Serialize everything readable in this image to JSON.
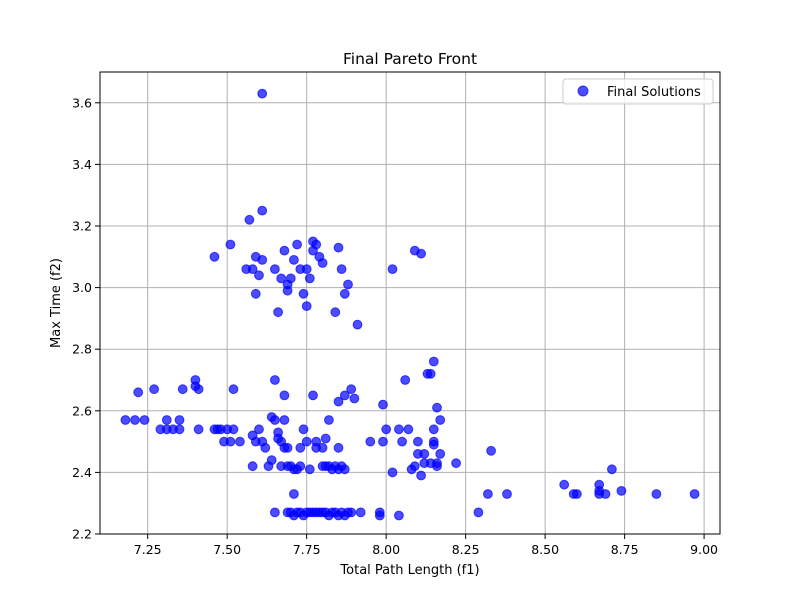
{
  "chart_data": {
    "type": "scatter",
    "title": "Final Pareto Front",
    "xlabel": "Total Path Length (f1)",
    "ylabel": "Max Time (f2)",
    "xlim": [
      7.1,
      9.05
    ],
    "ylim": [
      2.2,
      3.7
    ],
    "xticks": [
      7.25,
      7.5,
      7.75,
      8.0,
      8.25,
      8.5,
      8.75,
      9.0
    ],
    "xtick_labels": [
      "7.25",
      "7.50",
      "7.75",
      "8.00",
      "8.25",
      "8.50",
      "8.75",
      "9.00"
    ],
    "yticks": [
      2.2,
      2.4,
      2.6,
      2.8,
      3.0,
      3.2,
      3.4,
      3.6
    ],
    "ytick_labels": [
      "2.2",
      "2.4",
      "2.6",
      "2.8",
      "3.0",
      "3.2",
      "3.4",
      "3.6"
    ],
    "grid": true,
    "legend_position": "top-right",
    "series": [
      {
        "name": "Final Solutions",
        "color": "#0000ff",
        "alpha": 0.7,
        "points": [
          [
            7.61,
            3.63
          ],
          [
            7.61,
            3.25
          ],
          [
            7.57,
            3.22
          ],
          [
            7.51,
            3.14
          ],
          [
            7.46,
            3.1
          ],
          [
            7.56,
            3.06
          ],
          [
            7.58,
            3.06
          ],
          [
            7.59,
            3.1
          ],
          [
            7.61,
            3.09
          ],
          [
            7.6,
            3.04
          ],
          [
            7.59,
            2.98
          ],
          [
            7.65,
            3.06
          ],
          [
            7.67,
            3.03
          ],
          [
            7.69,
            3.01
          ],
          [
            7.69,
            2.99
          ],
          [
            7.68,
            3.12
          ],
          [
            7.71,
            3.09
          ],
          [
            7.7,
            3.03
          ],
          [
            7.72,
            3.14
          ],
          [
            7.73,
            3.06
          ],
          [
            7.74,
            2.98
          ],
          [
            7.75,
            2.94
          ],
          [
            7.66,
            2.92
          ],
          [
            7.75,
            3.06
          ],
          [
            7.77,
            3.15
          ],
          [
            7.78,
            3.14
          ],
          [
            7.77,
            3.12
          ],
          [
            7.76,
            3.03
          ],
          [
            7.79,
            3.1
          ],
          [
            7.8,
            3.08
          ],
          [
            7.85,
            3.13
          ],
          [
            7.86,
            3.06
          ],
          [
            7.84,
            2.92
          ],
          [
            7.87,
            2.98
          ],
          [
            7.88,
            3.01
          ],
          [
            7.91,
            2.88
          ],
          [
            8.02,
            3.06
          ],
          [
            8.09,
            3.12
          ],
          [
            8.11,
            3.11
          ],
          [
            7.18,
            2.57
          ],
          [
            7.21,
            2.57
          ],
          [
            7.22,
            2.66
          ],
          [
            7.24,
            2.57
          ],
          [
            7.27,
            2.67
          ],
          [
            7.29,
            2.54
          ],
          [
            7.31,
            2.57
          ],
          [
            7.31,
            2.54
          ],
          [
            7.33,
            2.54
          ],
          [
            7.35,
            2.54
          ],
          [
            7.35,
            2.57
          ],
          [
            7.36,
            2.67
          ],
          [
            7.4,
            2.7
          ],
          [
            7.4,
            2.68
          ],
          [
            7.41,
            2.67
          ],
          [
            7.41,
            2.54
          ],
          [
            7.46,
            2.54
          ],
          [
            7.47,
            2.54
          ],
          [
            7.48,
            2.54
          ],
          [
            7.49,
            2.5
          ],
          [
            7.5,
            2.54
          ],
          [
            7.51,
            2.5
          ],
          [
            7.52,
            2.54
          ],
          [
            7.52,
            2.67
          ],
          [
            7.54,
            2.5
          ],
          [
            7.58,
            2.52
          ],
          [
            7.58,
            2.42
          ],
          [
            7.59,
            2.5
          ],
          [
            7.6,
            2.54
          ],
          [
            7.61,
            2.5
          ],
          [
            7.62,
            2.48
          ],
          [
            7.63,
            2.42
          ],
          [
            7.64,
            2.58
          ],
          [
            7.65,
            2.57
          ],
          [
            7.64,
            2.44
          ],
          [
            7.65,
            2.7
          ],
          [
            7.66,
            2.53
          ],
          [
            7.66,
            2.51
          ],
          [
            7.67,
            2.5
          ],
          [
            7.67,
            2.42
          ],
          [
            7.68,
            2.48
          ],
          [
            7.68,
            2.57
          ],
          [
            7.68,
            2.65
          ],
          [
            7.69,
            2.48
          ],
          [
            7.69,
            2.42
          ],
          [
            7.7,
            2.42
          ],
          [
            7.71,
            2.41
          ],
          [
            7.72,
            2.41
          ],
          [
            7.71,
            2.33
          ],
          [
            7.73,
            2.42
          ],
          [
            7.74,
            2.54
          ],
          [
            7.73,
            2.48
          ],
          [
            7.75,
            2.5
          ],
          [
            7.76,
            2.41
          ],
          [
            7.77,
            2.65
          ],
          [
            7.78,
            2.48
          ],
          [
            7.78,
            2.5
          ],
          [
            7.8,
            2.42
          ],
          [
            7.8,
            2.48
          ],
          [
            7.81,
            2.42
          ],
          [
            7.81,
            2.51
          ],
          [
            7.82,
            2.57
          ],
          [
            7.82,
            2.42
          ],
          [
            7.83,
            2.41
          ],
          [
            7.84,
            2.42
          ],
          [
            7.85,
            2.41
          ],
          [
            7.85,
            2.48
          ],
          [
            7.85,
            2.63
          ],
          [
            7.86,
            2.42
          ],
          [
            7.87,
            2.41
          ],
          [
            7.87,
            2.65
          ],
          [
            7.89,
            2.67
          ],
          [
            7.9,
            2.64
          ],
          [
            7.95,
            2.5
          ],
          [
            7.99,
            2.62
          ],
          [
            7.99,
            2.5
          ],
          [
            8.0,
            2.54
          ],
          [
            8.02,
            2.4
          ],
          [
            8.04,
            2.54
          ],
          [
            8.05,
            2.5
          ],
          [
            8.06,
            2.7
          ],
          [
            8.07,
            2.54
          ],
          [
            8.08,
            2.41
          ],
          [
            8.09,
            2.42
          ],
          [
            8.1,
            2.46
          ],
          [
            8.1,
            2.5
          ],
          [
            8.11,
            2.39
          ],
          [
            8.12,
            2.46
          ],
          [
            8.12,
            2.43
          ],
          [
            8.13,
            2.72
          ],
          [
            8.14,
            2.72
          ],
          [
            8.14,
            2.43
          ],
          [
            8.15,
            2.54
          ],
          [
            8.15,
            2.5
          ],
          [
            8.15,
            2.49
          ],
          [
            8.15,
            2.76
          ],
          [
            8.16,
            2.61
          ],
          [
            8.16,
            2.43
          ],
          [
            8.16,
            2.42
          ],
          [
            8.17,
            2.57
          ],
          [
            8.17,
            2.46
          ],
          [
            8.22,
            2.43
          ],
          [
            8.29,
            2.27
          ],
          [
            8.32,
            2.33
          ],
          [
            8.33,
            2.47
          ],
          [
            8.38,
            2.33
          ],
          [
            8.56,
            2.36
          ],
          [
            8.59,
            2.33
          ],
          [
            8.6,
            2.33
          ],
          [
            8.67,
            2.36
          ],
          [
            8.67,
            2.34
          ],
          [
            8.67,
            2.33
          ],
          [
            8.69,
            2.33
          ],
          [
            8.71,
            2.41
          ],
          [
            8.74,
            2.34
          ],
          [
            8.85,
            2.33
          ],
          [
            8.97,
            2.33
          ],
          [
            7.65,
            2.27
          ],
          [
            7.69,
            2.27
          ],
          [
            7.7,
            2.27
          ],
          [
            7.71,
            2.26
          ],
          [
            7.72,
            2.27
          ],
          [
            7.73,
            2.27
          ],
          [
            7.74,
            2.26
          ],
          [
            7.75,
            2.27
          ],
          [
            7.76,
            2.27
          ],
          [
            7.77,
            2.27
          ],
          [
            7.78,
            2.27
          ],
          [
            7.79,
            2.27
          ],
          [
            7.8,
            2.27
          ],
          [
            7.81,
            2.27
          ],
          [
            7.82,
            2.26
          ],
          [
            7.83,
            2.27
          ],
          [
            7.84,
            2.27
          ],
          [
            7.85,
            2.26
          ],
          [
            7.86,
            2.27
          ],
          [
            7.87,
            2.26
          ],
          [
            7.88,
            2.27
          ],
          [
            7.89,
            2.27
          ],
          [
            7.92,
            2.27
          ],
          [
            7.98,
            2.27
          ],
          [
            7.98,
            2.26
          ],
          [
            8.04,
            2.26
          ]
        ]
      }
    ]
  }
}
